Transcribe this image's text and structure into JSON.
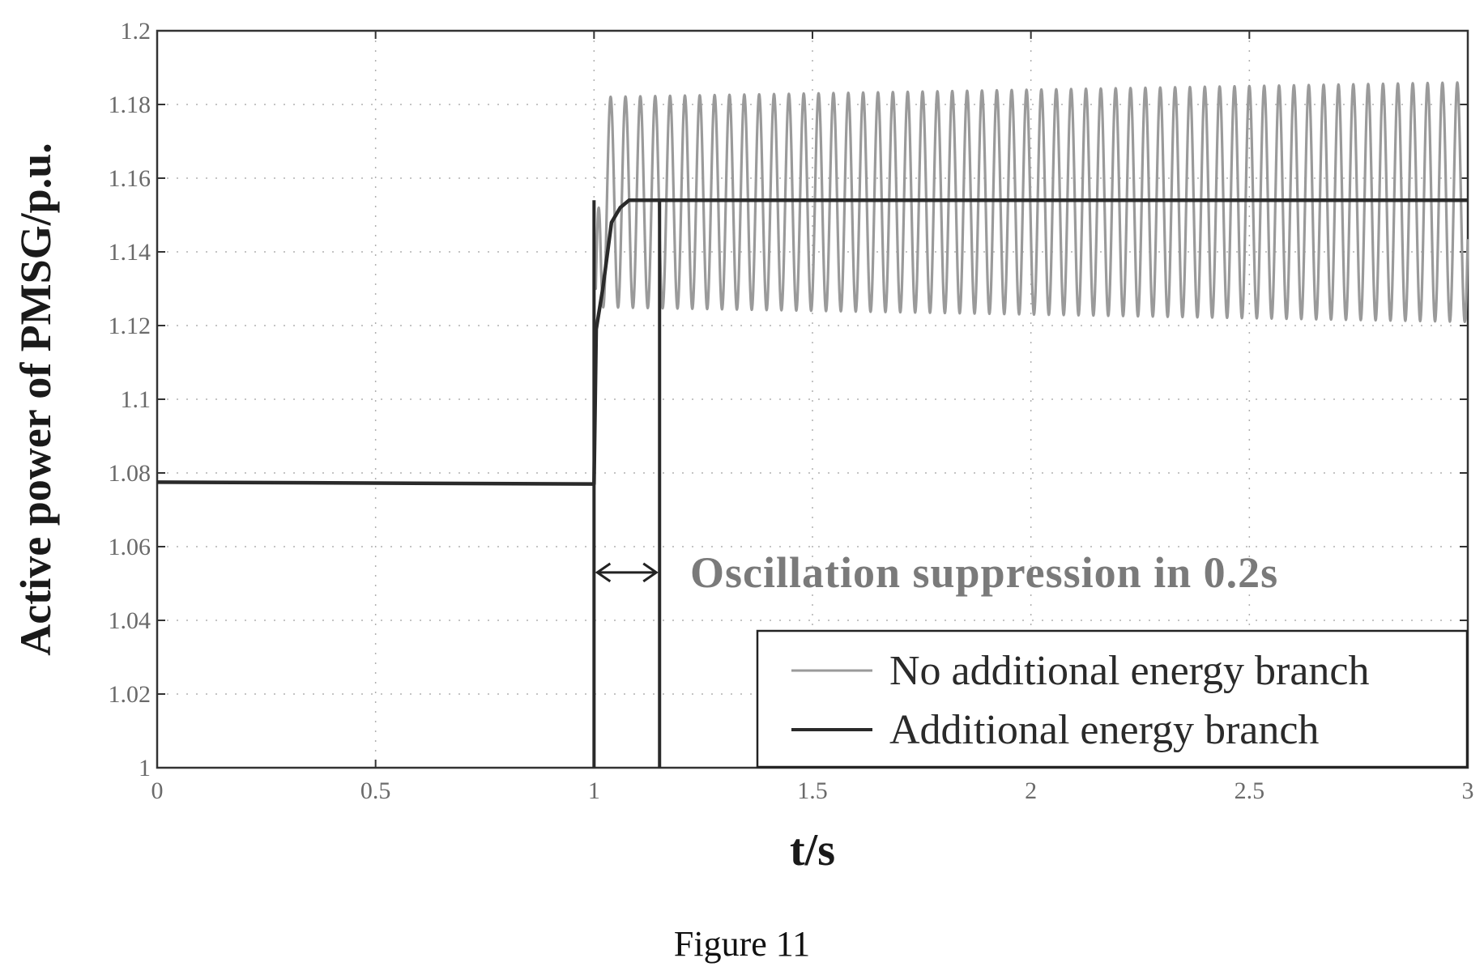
{
  "colors": {
    "series_no_branch": "#9a9a9a",
    "series_branch": "#2a2a2a",
    "axes": "#333333",
    "grid": "#b0b0b0"
  },
  "caption": "Figure 11",
  "annotation": "Oscillation suppression in 0.2s",
  "chart_data": {
    "type": "line",
    "title": "",
    "xlabel": "t/s",
    "ylabel": "Active power of PMSG/p.u.",
    "xlim": [
      0,
      3
    ],
    "ylim": [
      1,
      1.2
    ],
    "x_ticks": [
      0,
      0.5,
      1,
      1.5,
      2,
      2.5,
      3
    ],
    "x_tick_labels": [
      "0",
      "0.5",
      "1",
      "1.5",
      "2",
      "2.5",
      "3"
    ],
    "y_ticks": [
      1,
      1.02,
      1.04,
      1.06,
      1.08,
      1.1,
      1.12,
      1.14,
      1.16,
      1.18,
      1.2
    ],
    "y_tick_labels": [
      "1",
      "1.02",
      "1.04",
      "1.06",
      "1.08",
      "1.1",
      "1.12",
      "1.14",
      "1.16",
      "1.18",
      "1.2"
    ],
    "grid": true,
    "legend_position": "bottom-right",
    "series": [
      {
        "name": "No additional energy branch",
        "color": "#9a9a9a",
        "initial_value": 1.0775,
        "step_time": 1.0,
        "oscillation": {
          "period": 0.034,
          "min_start": 1.125,
          "max_start": 1.182,
          "min_end": 1.121,
          "max_end": 1.186
        },
        "points": [
          [
            0,
            1.0775
          ],
          [
            1.0,
            1.077
          ],
          [
            1.0,
            1.13
          ],
          [
            1.02,
            1.18
          ],
          [
            1.037,
            1.125
          ],
          [
            3,
            1.154
          ]
        ]
      },
      {
        "name": "Additional energy branch",
        "color": "#2a2a2a",
        "points": [
          [
            0,
            1.0775
          ],
          [
            0.995,
            1.077
          ],
          [
            1.0,
            1.077
          ],
          [
            1.005,
            1.119
          ],
          [
            1.02,
            1.13
          ],
          [
            1.04,
            1.148
          ],
          [
            1.06,
            1.152
          ],
          [
            1.08,
            1.154
          ],
          [
            3,
            1.154
          ]
        ]
      }
    ],
    "markers": [
      {
        "type": "vertical-line",
        "x": 1.0
      },
      {
        "type": "vertical-line",
        "x": 1.15
      },
      {
        "type": "double-arrow",
        "x_from": 1.0,
        "x_to": 1.15,
        "y": 1.053
      }
    ]
  }
}
